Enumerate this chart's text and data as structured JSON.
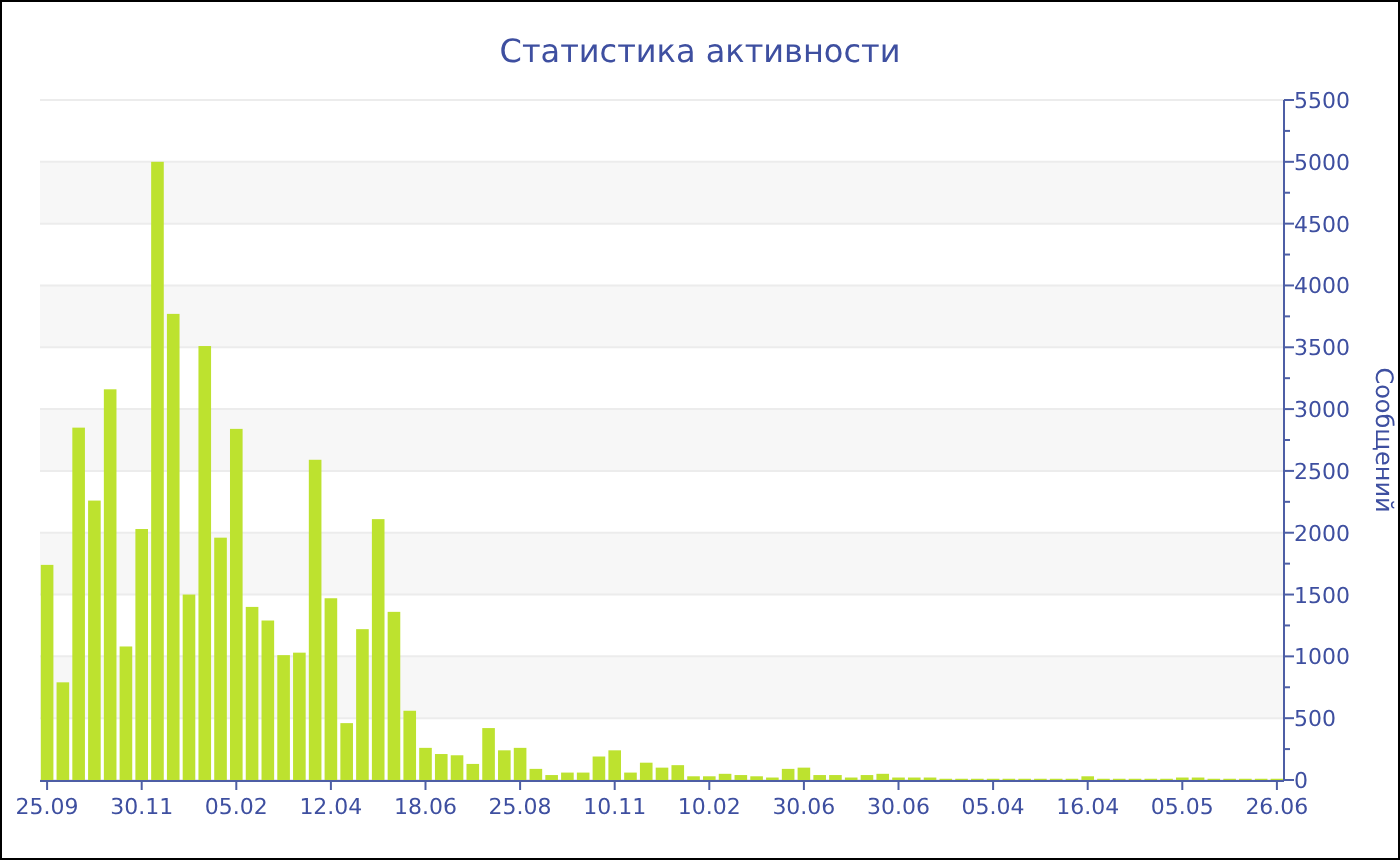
{
  "chart_data": {
    "type": "bar",
    "title": "Статистика активности",
    "ylabel": "Сообщений",
    "categories": [
      "25.09",
      null,
      null,
      null,
      null,
      null,
      "30.11",
      null,
      null,
      null,
      null,
      null,
      "05.02",
      null,
      null,
      null,
      null,
      null,
      "12.04",
      null,
      null,
      null,
      null,
      null,
      "18.06",
      null,
      null,
      null,
      null,
      null,
      "25.08",
      null,
      null,
      null,
      null,
      null,
      "10.11",
      null,
      null,
      null,
      null,
      null,
      "10.02",
      null,
      null,
      null,
      null,
      null,
      "30.06",
      null,
      null,
      null,
      null,
      null,
      "30.06",
      null,
      null,
      null,
      null,
      null,
      "05.04",
      null,
      null,
      null,
      null,
      null,
      "16.04",
      null,
      null,
      null,
      null,
      null,
      "05.05",
      null,
      null,
      null,
      null,
      null,
      "26.06"
    ],
    "values": [
      1740,
      790,
      2850,
      2260,
      3160,
      1080,
      2030,
      5000,
      3770,
      1500,
      3510,
      1960,
      2840,
      1400,
      1290,
      1010,
      1030,
      2590,
      1470,
      460,
      1220,
      2110,
      1360,
      560,
      260,
      210,
      200,
      130,
      420,
      240,
      260,
      90,
      40,
      60,
      60,
      190,
      240,
      60,
      140,
      100,
      120,
      30,
      30,
      50,
      40,
      30,
      20,
      90,
      100,
      40,
      40,
      20,
      40,
      50,
      20,
      20,
      20,
      10,
      10,
      10,
      10,
      10,
      10,
      10,
      10,
      10,
      30,
      10,
      10,
      10,
      10,
      10,
      20,
      20,
      10,
      10,
      10,
      10,
      10
    ],
    "color": "#bde22f",
    "ylim": [
      0,
      5500
    ],
    "yticks": [
      0,
      {
        "value": 250,
        "label": null
      },
      500,
      {
        "value": 750,
        "label": null
      },
      1000,
      {
        "value": 1250,
        "label": null
      },
      1500,
      {
        "value": 1750,
        "label": null
      },
      2000,
      {
        "value": 2250,
        "label": null
      },
      2500,
      {
        "value": 2750,
        "label": null
      },
      3000,
      {
        "value": 3250,
        "label": null
      },
      3500,
      {
        "value": 3750,
        "label": null
      },
      4000,
      {
        "value": 4250,
        "label": null
      },
      4500,
      {
        "value": 4750,
        "label": null
      },
      5000,
      {
        "value": 5250,
        "label": null
      },
      5500
    ],
    "grid": "y"
  }
}
